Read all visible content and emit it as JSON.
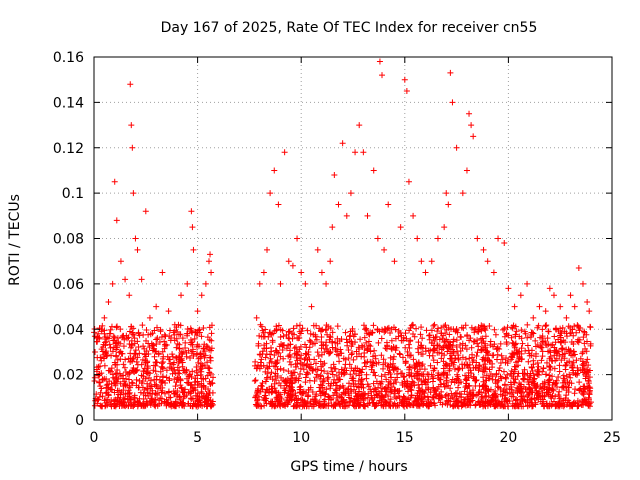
{
  "chart_data": {
    "type": "scatter",
    "title": "Day 167 of 2025, Rate Of TEC Index for receiver cn55",
    "xlabel": "GPS time / hours",
    "ylabel": "ROTI / TECUs",
    "xlim": [
      0,
      25
    ],
    "ylim": [
      0,
      0.16
    ],
    "grid": true,
    "xticks": [
      "0",
      "5",
      "10",
      "15",
      "20",
      "25"
    ],
    "yticks": [
      "0",
      "0.02",
      "0.04",
      "0.06",
      "0.08",
      "0.1",
      "0.12",
      "0.14",
      "0.16"
    ],
    "marker": "+",
    "series_color": "#ff0000",
    "data_gap_hours": [
      5.75,
      7.75
    ],
    "series": [
      {
        "x": [
          0.05,
          0.2,
          0.35,
          0.5,
          0.7,
          0.9,
          1.0,
          1.1,
          1.3,
          1.5,
          1.7,
          1.75,
          1.8,
          1.85,
          1.9,
          2.0,
          2.1,
          2.3,
          2.5,
          2.7,
          3.0,
          3.3,
          3.6,
          3.9,
          4.2,
          4.5,
          4.7,
          4.75,
          4.8,
          5.0,
          5.2,
          5.4,
          5.55,
          5.6,
          5.65,
          7.85,
          8.0,
          8.2,
          8.35,
          8.5,
          8.7,
          8.9,
          9.0,
          9.2,
          9.4,
          9.6,
          9.8,
          10.0,
          10.2,
          10.5,
          10.8,
          11.0,
          11.2,
          11.4,
          11.5,
          11.6,
          11.8,
          12.0,
          12.2,
          12.4,
          12.6,
          12.8,
          13.0,
          13.2,
          13.5,
          13.7,
          13.8,
          13.9,
          14.0,
          14.2,
          14.5,
          14.8,
          15.0,
          15.1,
          15.2,
          15.4,
          15.6,
          15.8,
          16.0,
          16.3,
          16.6,
          16.9,
          17.0,
          17.1,
          17.2,
          17.3,
          17.5,
          17.8,
          18.0,
          18.1,
          18.2,
          18.3,
          18.5,
          18.8,
          19.0,
          19.3,
          19.5,
          19.8,
          20.0,
          20.3,
          20.6,
          20.9,
          21.2,
          21.5,
          21.8,
          22.0,
          22.2,
          22.5,
          22.8,
          23.0,
          23.2,
          23.4,
          23.6,
          23.8,
          23.9
        ],
        "y": [
          0.03,
          0.038,
          0.04,
          0.045,
          0.052,
          0.06,
          0.105,
          0.088,
          0.07,
          0.062,
          0.055,
          0.148,
          0.13,
          0.12,
          0.1,
          0.08,
          0.075,
          0.062,
          0.092,
          0.045,
          0.05,
          0.065,
          0.048,
          0.042,
          0.055,
          0.06,
          0.092,
          0.085,
          0.075,
          0.048,
          0.055,
          0.06,
          0.07,
          0.073,
          0.065,
          0.045,
          0.06,
          0.065,
          0.075,
          0.1,
          0.11,
          0.095,
          0.06,
          0.118,
          0.07,
          0.068,
          0.08,
          0.065,
          0.06,
          0.05,
          0.075,
          0.065,
          0.06,
          0.07,
          0.085,
          0.108,
          0.095,
          0.122,
          0.09,
          0.1,
          0.118,
          0.13,
          0.118,
          0.09,
          0.11,
          0.08,
          0.158,
          0.152,
          0.075,
          0.095,
          0.07,
          0.085,
          0.15,
          0.145,
          0.105,
          0.09,
          0.08,
          0.07,
          0.065,
          0.07,
          0.08,
          0.085,
          0.1,
          0.095,
          0.153,
          0.14,
          0.12,
          0.1,
          0.11,
          0.135,
          0.13,
          0.125,
          0.08,
          0.075,
          0.07,
          0.065,
          0.08,
          0.078,
          0.058,
          0.05,
          0.055,
          0.06,
          0.045,
          0.05,
          0.048,
          0.058,
          0.055,
          0.05,
          0.045,
          0.055,
          0.05,
          0.067,
          0.06,
          0.052,
          0.048
        ]
      }
    ]
  }
}
